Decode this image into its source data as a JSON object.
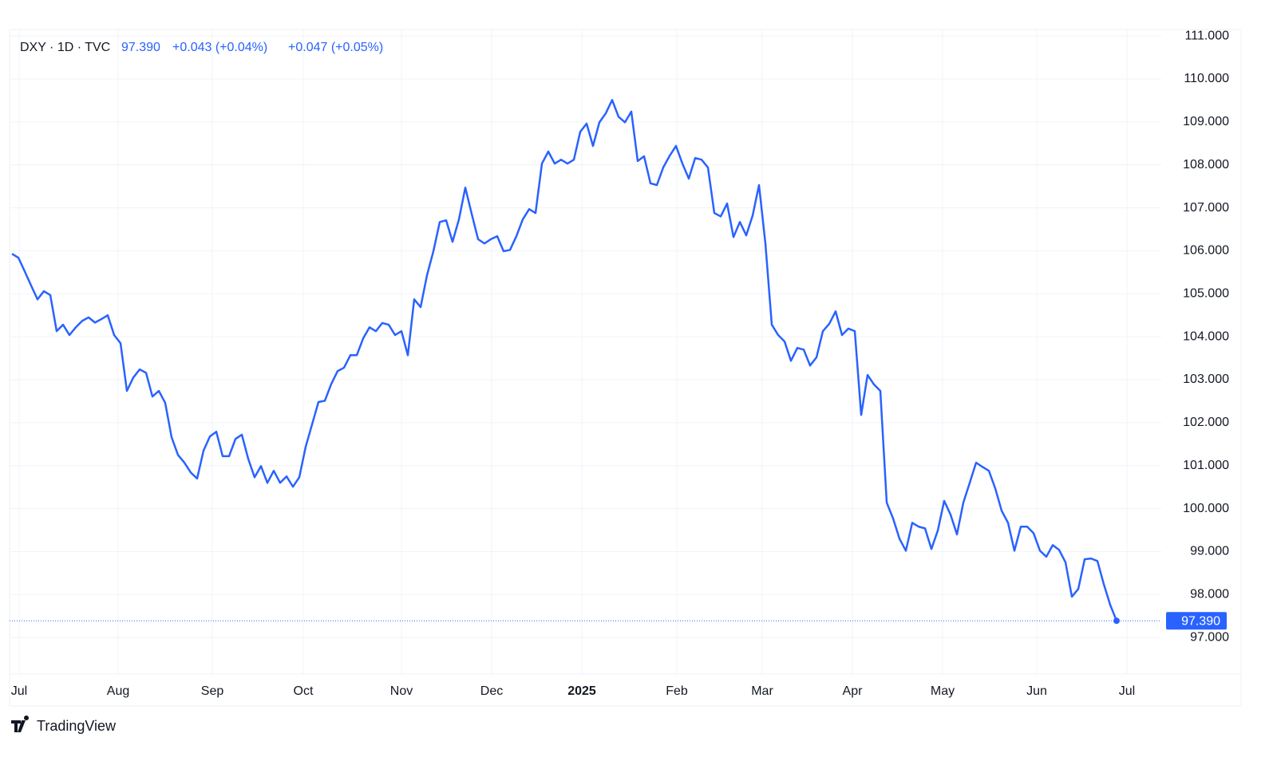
{
  "chart_data": {
    "type": "line",
    "header": {
      "symbol": "DXY · 1D · TVC",
      "price": "97.390",
      "change1": "+0.043 (+0.04%)",
      "change2": "+0.047 (+0.05%)"
    },
    "series": [
      {
        "name": "DXY",
        "color": "#2962ff",
        "values": [
          105.93,
          105.84,
          105.52,
          105.19,
          104.87,
          105.06,
          104.97,
          104.13,
          104.28,
          104.04,
          104.22,
          104.37,
          104.45,
          104.33,
          104.41,
          104.5,
          104.04,
          103.85,
          102.74,
          103.05,
          103.24,
          103.16,
          102.61,
          102.74,
          102.46,
          101.66,
          101.25,
          101.07,
          100.84,
          100.7,
          101.35,
          101.68,
          101.79,
          101.22,
          101.22,
          101.62,
          101.72,
          101.16,
          100.73,
          100.99,
          100.6,
          100.88,
          100.6,
          100.75,
          100.51,
          100.73,
          101.44,
          101.96,
          102.48,
          102.51,
          102.9,
          103.2,
          103.28,
          103.57,
          103.57,
          103.96,
          104.22,
          104.13,
          104.32,
          104.28,
          104.04,
          104.13,
          103.57,
          104.87,
          104.69,
          105.43,
          105.99,
          106.67,
          106.71,
          106.21,
          106.73,
          107.47,
          106.86,
          106.27,
          106.17,
          106.27,
          106.34,
          105.99,
          106.02,
          106.34,
          106.73,
          106.97,
          106.88,
          108.03,
          108.31,
          108.03,
          108.12,
          108.03,
          108.12,
          108.77,
          108.96,
          108.44,
          108.99,
          109.2,
          109.51,
          109.12,
          108.99,
          109.24,
          108.09,
          108.2,
          107.57,
          107.53,
          107.94,
          108.21,
          108.44,
          108.03,
          107.68,
          108.16,
          108.12,
          107.94,
          106.88,
          106.8,
          107.1,
          106.32,
          106.67,
          106.36,
          106.82,
          107.53,
          106.17,
          104.28,
          104.04,
          103.89,
          103.44,
          103.74,
          103.7,
          103.33,
          103.52,
          104.13,
          104.3,
          104.59,
          104.04,
          104.19,
          104.13,
          102.18,
          103.11,
          102.89,
          102.74,
          100.14,
          99.77,
          99.3,
          99.02,
          99.67,
          99.58,
          99.54,
          99.06,
          99.49,
          100.18,
          99.86,
          99.4,
          100.14,
          100.6,
          101.07,
          100.97,
          100.88,
          100.47,
          99.95,
          99.67,
          99.02,
          99.58,
          99.58,
          99.43,
          99.02,
          98.88,
          99.15,
          99.04,
          98.75,
          97.95,
          98.13,
          98.82,
          98.84,
          98.78,
          98.24,
          97.76,
          97.39
        ]
      }
    ],
    "last_price_label": "97.390",
    "xlim": [
      -0.375,
      180
    ],
    "xticks": [
      {
        "value": 1.125,
        "label": "Jul"
      },
      {
        "value": 16.625,
        "label": "Aug"
      },
      {
        "value": 31.375,
        "label": "Sep"
      },
      {
        "value": 45.625,
        "label": "Oct"
      },
      {
        "value": 61,
        "label": "Nov"
      },
      {
        "value": 75.125,
        "label": "Dec"
      },
      {
        "value": 89.25,
        "label": "2025",
        "bold": true
      },
      {
        "value": 104.125,
        "label": "Feb"
      },
      {
        "value": 117.5,
        "label": "Mar"
      },
      {
        "value": 131.625,
        "label": "Apr"
      },
      {
        "value": 145.75,
        "label": "May"
      },
      {
        "value": 160.5,
        "label": "Jun"
      },
      {
        "value": 174.625,
        "label": "Jul"
      }
    ],
    "ylim": [
      96.15,
      111.15
    ],
    "yticks": [
      {
        "value": 97,
        "label": "97.000"
      },
      {
        "value": 98,
        "label": "98.000"
      },
      {
        "value": 99,
        "label": "99.000"
      },
      {
        "value": 100,
        "label": "100.000"
      },
      {
        "value": 101,
        "label": "101.000"
      },
      {
        "value": 102,
        "label": "102.000"
      },
      {
        "value": 103,
        "label": "103.000"
      },
      {
        "value": 104,
        "label": "104.000"
      },
      {
        "value": 105,
        "label": "105.000"
      },
      {
        "value": 106,
        "label": "106.000"
      },
      {
        "value": 107,
        "label": "107.000"
      },
      {
        "value": 108,
        "label": "108.000"
      },
      {
        "value": 109,
        "label": "109.000"
      },
      {
        "value": 110,
        "label": "110.000"
      },
      {
        "value": 111,
        "label": "111.000"
      }
    ],
    "grid": true,
    "branding": "TradingView"
  }
}
